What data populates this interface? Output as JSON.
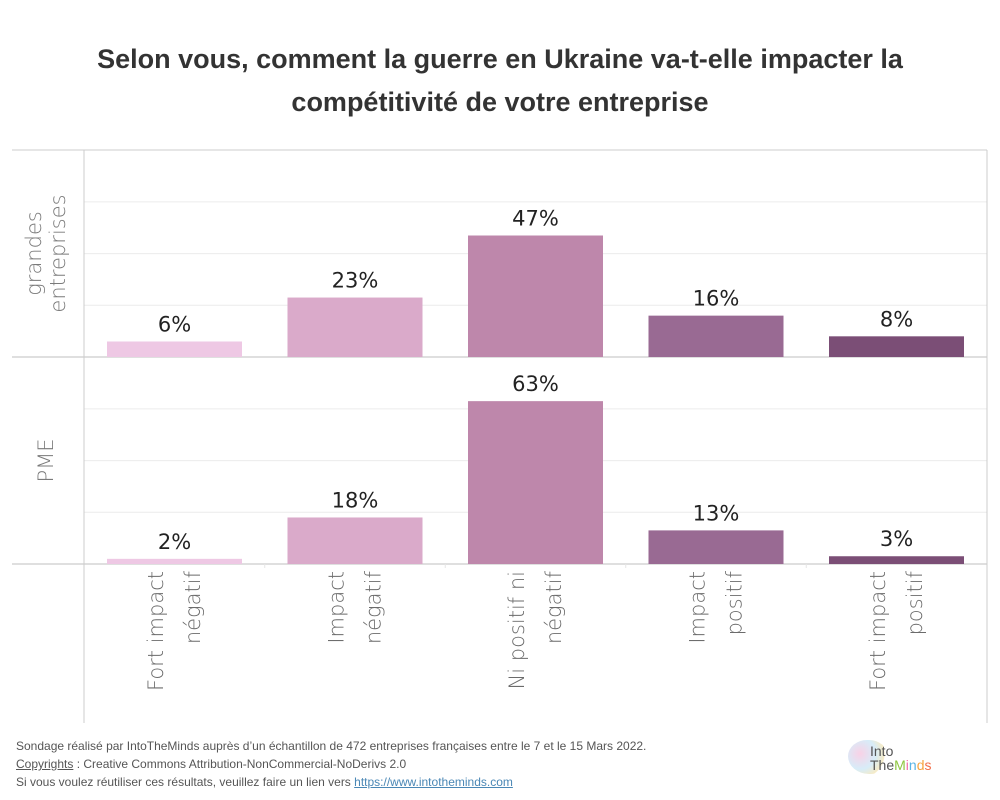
{
  "chart_data": {
    "type": "bar",
    "title": "Selon vous, comment la guerre en Ukraine va-t-elle impacter la compétitivité de votre entreprise",
    "title_lines": [
      "Selon vous, comment la guerre en Ukraine va-t-elle impacter la",
      "compétitivité de votre entreprise"
    ],
    "categories": [
      "Fort impact négatif",
      "Impact négatif",
      "Ni positif ni négatif",
      "Impact positif",
      "Fort impact positif"
    ],
    "category_lines": [
      [
        "Fort impact",
        "négatif"
      ],
      [
        "Impact",
        "négatif"
      ],
      [
        "Ni positif ni",
        "négatif"
      ],
      [
        "Impact",
        "positif"
      ],
      [
        "Fort impact",
        "positif"
      ]
    ],
    "category_colors": [
      "#EEC8E4",
      "#DAAACA",
      "#BE87AB",
      "#996A93",
      "#7B4E76"
    ],
    "panels": [
      {
        "name": "grandes entreprises",
        "label_lines": [
          "grandes",
          "entreprises"
        ],
        "values": [
          6,
          23,
          47,
          16,
          8
        ],
        "labels": [
          "6%",
          "23%",
          "47%",
          "16%",
          "8%"
        ]
      },
      {
        "name": "PME",
        "label_lines": [
          "PME"
        ],
        "values": [
          2,
          18,
          63,
          13,
          3
        ],
        "labels": [
          "2%",
          "18%",
          "63%",
          "13%",
          "3%"
        ]
      }
    ],
    "value_unit": "%",
    "ylim": [
      0,
      80
    ],
    "gridline_step": 20,
    "grid": true,
    "xlabel": "",
    "ylabel": ""
  },
  "footer": {
    "line1": "Sondage réalisé par IntoTheMinds auprès d’un échantillon de 472 entreprises françaises entre le 7 et le 15 Mars 2022.",
    "copyright_link": "Copyrights",
    "line2_rest": " : Creative Commons Attribution-NonCommercial-NoDerivs 2.0",
    "line3_prefix": "Si vous voulez réutiliser ces résultats, veuillez faire un lien vers ",
    "url_link": "https://www.intotheminds.com"
  },
  "logo": {
    "line1": "Into",
    "line2_the": "The",
    "line2_minds": [
      "M",
      "i",
      "n",
      "d",
      "s"
    ]
  }
}
